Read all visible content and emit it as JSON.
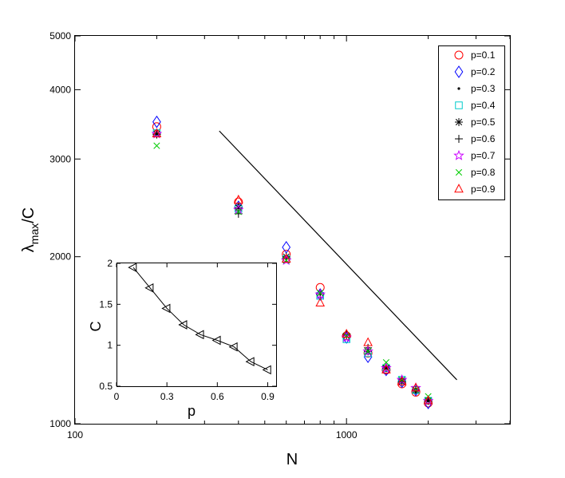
{
  "chart_data": [
    {
      "type": "scatter",
      "title": "",
      "xlabel": "N",
      "ylabel": "λ_max/C",
      "xscale": "log",
      "yscale": "log",
      "xlim": [
        100,
        4000
      ],
      "ylim": [
        1000,
        5000
      ],
      "x_ticks": [
        100,
        1000
      ],
      "x_tick_labels": [
        "100",
        "1000"
      ],
      "y_ticks": [
        1000,
        2000,
        3000,
        4000,
        5000
      ],
      "y_tick_labels": [
        "1000",
        "2000",
        "3000",
        "4000",
        "5000"
      ],
      "grid": false,
      "legend_position": "top-right",
      "series": [
        {
          "name": "p=0.1",
          "marker": "circle",
          "color": "#ff0000",
          "x": [
            200,
            400,
            600,
            800,
            1000,
            1200,
            1400,
            1600,
            1800,
            2000
          ],
          "y": [
            3430,
            2510,
            2020,
            1760,
            1440,
            1340,
            1250,
            1180,
            1140,
            1090
          ]
        },
        {
          "name": "p=0.2",
          "marker": "diamond",
          "color": "#0000ff",
          "x": [
            200,
            400,
            600,
            800,
            1000,
            1200,
            1400,
            1600,
            1800,
            2000
          ],
          "y": [
            3500,
            2460,
            2080,
            1710,
            1430,
            1320,
            1250,
            1190,
            1150,
            1090
          ]
        },
        {
          "name": "p=0.3",
          "marker": "dot",
          "color": "#000000",
          "x": [
            200,
            400,
            600,
            800,
            1000,
            1200,
            1400,
            1600,
            1800,
            2000
          ],
          "y": [
            3380,
            2480,
            2000,
            1730,
            1440,
            1370,
            1260,
            1190,
            1140,
            1100
          ]
        },
        {
          "name": "p=0.4",
          "marker": "square",
          "color": "#00cccc",
          "x": [
            200,
            400,
            600,
            800,
            1000,
            1200,
            1400,
            1600,
            1800,
            2000
          ],
          "y": [
            3340,
            2440,
            1980,
            1700,
            1420,
            1340,
            1260,
            1200,
            1150,
            1100
          ]
        },
        {
          "name": "p=0.5",
          "marker": "asterisk",
          "color": "#000000",
          "x": [
            200,
            400,
            600,
            800,
            1000,
            1200,
            1400,
            1600,
            1800,
            2000
          ],
          "y": [
            3330,
            2450,
            2000,
            1720,
            1440,
            1350,
            1260,
            1190,
            1150,
            1100
          ]
        },
        {
          "name": "p=0.6",
          "marker": "plus",
          "color": "#000000",
          "x": [
            200,
            400,
            600,
            800,
            1000,
            1200,
            1400,
            1600,
            1800,
            2000
          ],
          "y": [
            3320,
            2390,
            1990,
            1710,
            1450,
            1370,
            1270,
            1200,
            1150,
            1100
          ]
        },
        {
          "name": "p=0.7",
          "marker": "star",
          "color": "#cc00ff",
          "x": [
            200,
            400,
            600,
            800,
            1000,
            1200,
            1400,
            1600,
            1800,
            2000
          ],
          "y": [
            3330,
            2430,
            1970,
            1710,
            1430,
            1350,
            1260,
            1200,
            1160,
            1100
          ]
        },
        {
          "name": "p=0.8",
          "marker": "x",
          "color": "#00cc00",
          "x": [
            200,
            400,
            600,
            800,
            1000,
            1200,
            1400,
            1600,
            1800,
            2000
          ],
          "y": [
            3170,
            2410,
            1970,
            1720,
            1440,
            1350,
            1290,
            1200,
            1150,
            1120
          ]
        },
        {
          "name": "p=0.9",
          "marker": "triangle-up",
          "color": "#ff0000",
          "x": [
            200,
            400,
            600,
            800,
            1000,
            1200,
            1400,
            1600,
            1800,
            2000
          ],
          "y": [
            3330,
            2530,
            1980,
            1650,
            1450,
            1400,
            1250,
            1190,
            1160,
            1100
          ]
        }
      ],
      "reference_line": {
        "color": "#000000",
        "x": [
          340,
          2550
        ],
        "y": [
          3370,
          1200
        ]
      }
    },
    {
      "type": "line",
      "title": "",
      "xlabel": "p",
      "ylabel": "C",
      "xlim": [
        0,
        0.95
      ],
      "ylim": [
        0.5,
        2
      ],
      "x_ticks": [
        0,
        0.3,
        0.6,
        0.9
      ],
      "x_tick_labels": [
        "0",
        "0.3",
        "0.6",
        "0.9"
      ],
      "y_ticks": [
        0.5,
        1,
        1.5,
        2
      ],
      "y_tick_labels": [
        "0.5",
        "1",
        "1.5",
        "2"
      ],
      "grid": false,
      "series": [
        {
          "marker": "triangle-left",
          "color": "#000000",
          "x": [
            0.1,
            0.2,
            0.3,
            0.4,
            0.5,
            0.6,
            0.7,
            0.8,
            0.9
          ],
          "y": [
            1.95,
            1.7,
            1.45,
            1.25,
            1.13,
            1.06,
            0.98,
            0.8,
            0.7
          ]
        }
      ]
    }
  ]
}
